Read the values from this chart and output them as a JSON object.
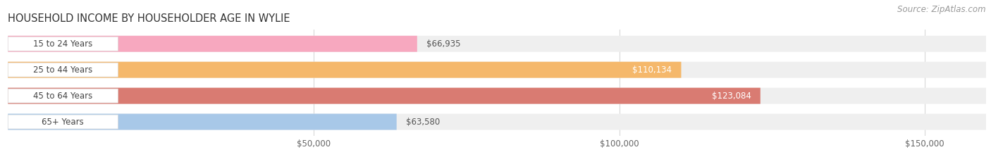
{
  "title": "HOUSEHOLD INCOME BY HOUSEHOLDER AGE IN WYLIE",
  "source": "Source: ZipAtlas.com",
  "categories": [
    "15 to 24 Years",
    "25 to 44 Years",
    "45 to 64 Years",
    "65+ Years"
  ],
  "values": [
    66935,
    110134,
    123084,
    63580
  ],
  "bar_colors": [
    "#f7a8bf",
    "#f5b86b",
    "#d97b72",
    "#a8c8e8"
  ],
  "bar_label_colors": [
    "#555555",
    "#ffffff",
    "#ffffff",
    "#555555"
  ],
  "bar_labels": [
    "$66,935",
    "$110,134",
    "$123,084",
    "$63,580"
  ],
  "xlim": [
    0,
    160000
  ],
  "axis_max": 150000,
  "xticks": [
    50000,
    100000,
    150000
  ],
  "xticklabels": [
    "$50,000",
    "$100,000",
    "$150,000"
  ],
  "background_color": "#ffffff",
  "bar_bg_color": "#efefef",
  "label_bg_color": "#ffffff",
  "title_fontsize": 10.5,
  "source_fontsize": 8.5,
  "label_fontsize": 8.5,
  "tick_fontsize": 8.5,
  "bar_height": 0.62,
  "grid_color": "#d8d8d8"
}
